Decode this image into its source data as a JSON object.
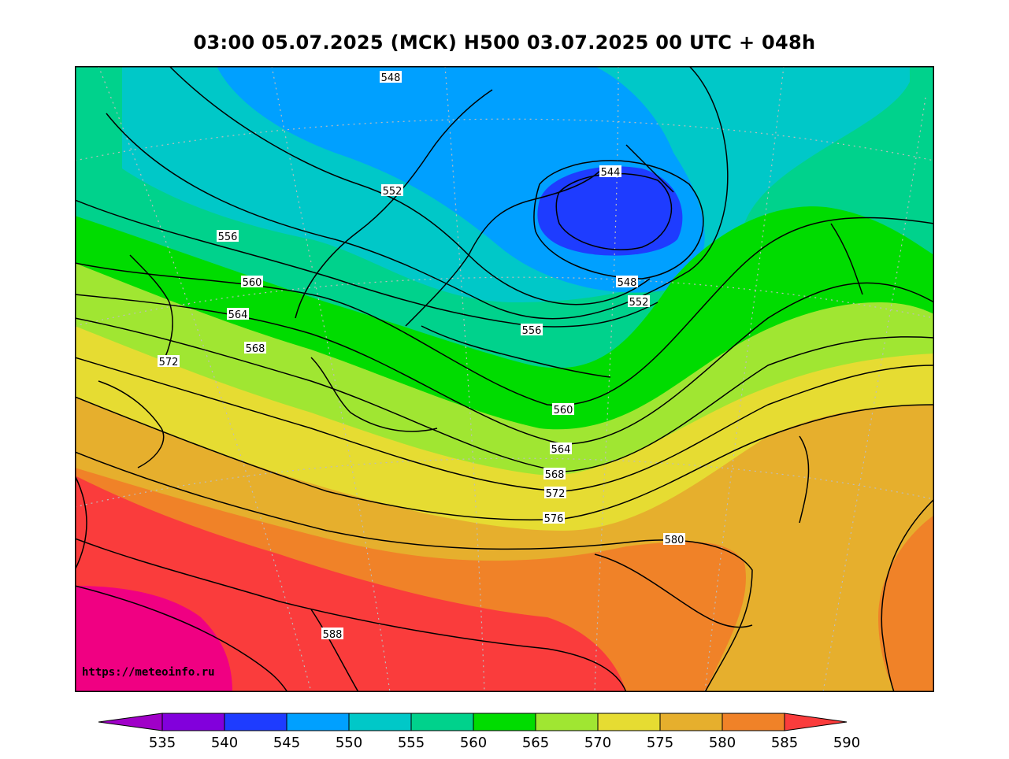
{
  "title": "03:00 05.07.2025 (МСК) H500  03.07.2025 00 UTC + 048h",
  "watermark": "https://meteoinfo.ru",
  "colors": {
    "c535": "#a000c8",
    "c540": "#8200dc",
    "c545": "#1e3cff",
    "c550": "#00a0ff",
    "c555": "#00c8c8",
    "c560": "#00d28c",
    "c565": "#00dc00",
    "c570": "#a0e632",
    "c575": "#e6dc32",
    "c580": "#e6af2d",
    "c585": "#f08228",
    "c590": "#fa3c3c",
    "c595": "#f00082"
  },
  "contour_labels": [
    "548",
    "552",
    "556",
    "560",
    "564",
    "568",
    "572",
    "544",
    "548",
    "552",
    "556",
    "560",
    "564",
    "568",
    "572",
    "576",
    "580",
    "588"
  ],
  "colorbar_ticks": [
    "535",
    "540",
    "545",
    "550",
    "555",
    "560",
    "565",
    "570",
    "575",
    "580",
    "585",
    "590"
  ]
}
